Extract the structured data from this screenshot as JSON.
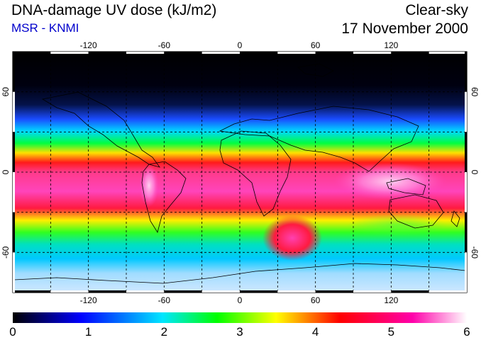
{
  "header": {
    "title": "DNA-damage UV dose (kJ/m2)",
    "source": "MSR - KNMI",
    "condition": "Clear-sky",
    "date": "17 November 2000"
  },
  "map": {
    "lon_ticks": [
      "-120",
      "-60",
      "0",
      "60",
      "120"
    ],
    "lat_ticks": [
      "60",
      "0",
      "-60"
    ],
    "lon_values": [
      -120,
      -60,
      0,
      60,
      120
    ],
    "lat_values": [
      60,
      0,
      -60
    ],
    "lon_range": [
      -180,
      180
    ],
    "lat_range": [
      -90,
      90
    ],
    "gridlines": "dashed every 30 degrees"
  },
  "colorbar": {
    "min": 0,
    "max": 6,
    "labels": [
      "0",
      "1",
      "2",
      "3",
      "4",
      "5",
      "6"
    ],
    "colors": [
      "#000000",
      "#0000ff",
      "#00e6ff",
      "#00ff00",
      "#ffff00",
      "#ff0000",
      "#ff00aa",
      "#ffffff"
    ]
  },
  "colors": {
    "subtitle": "#0000cc"
  }
}
